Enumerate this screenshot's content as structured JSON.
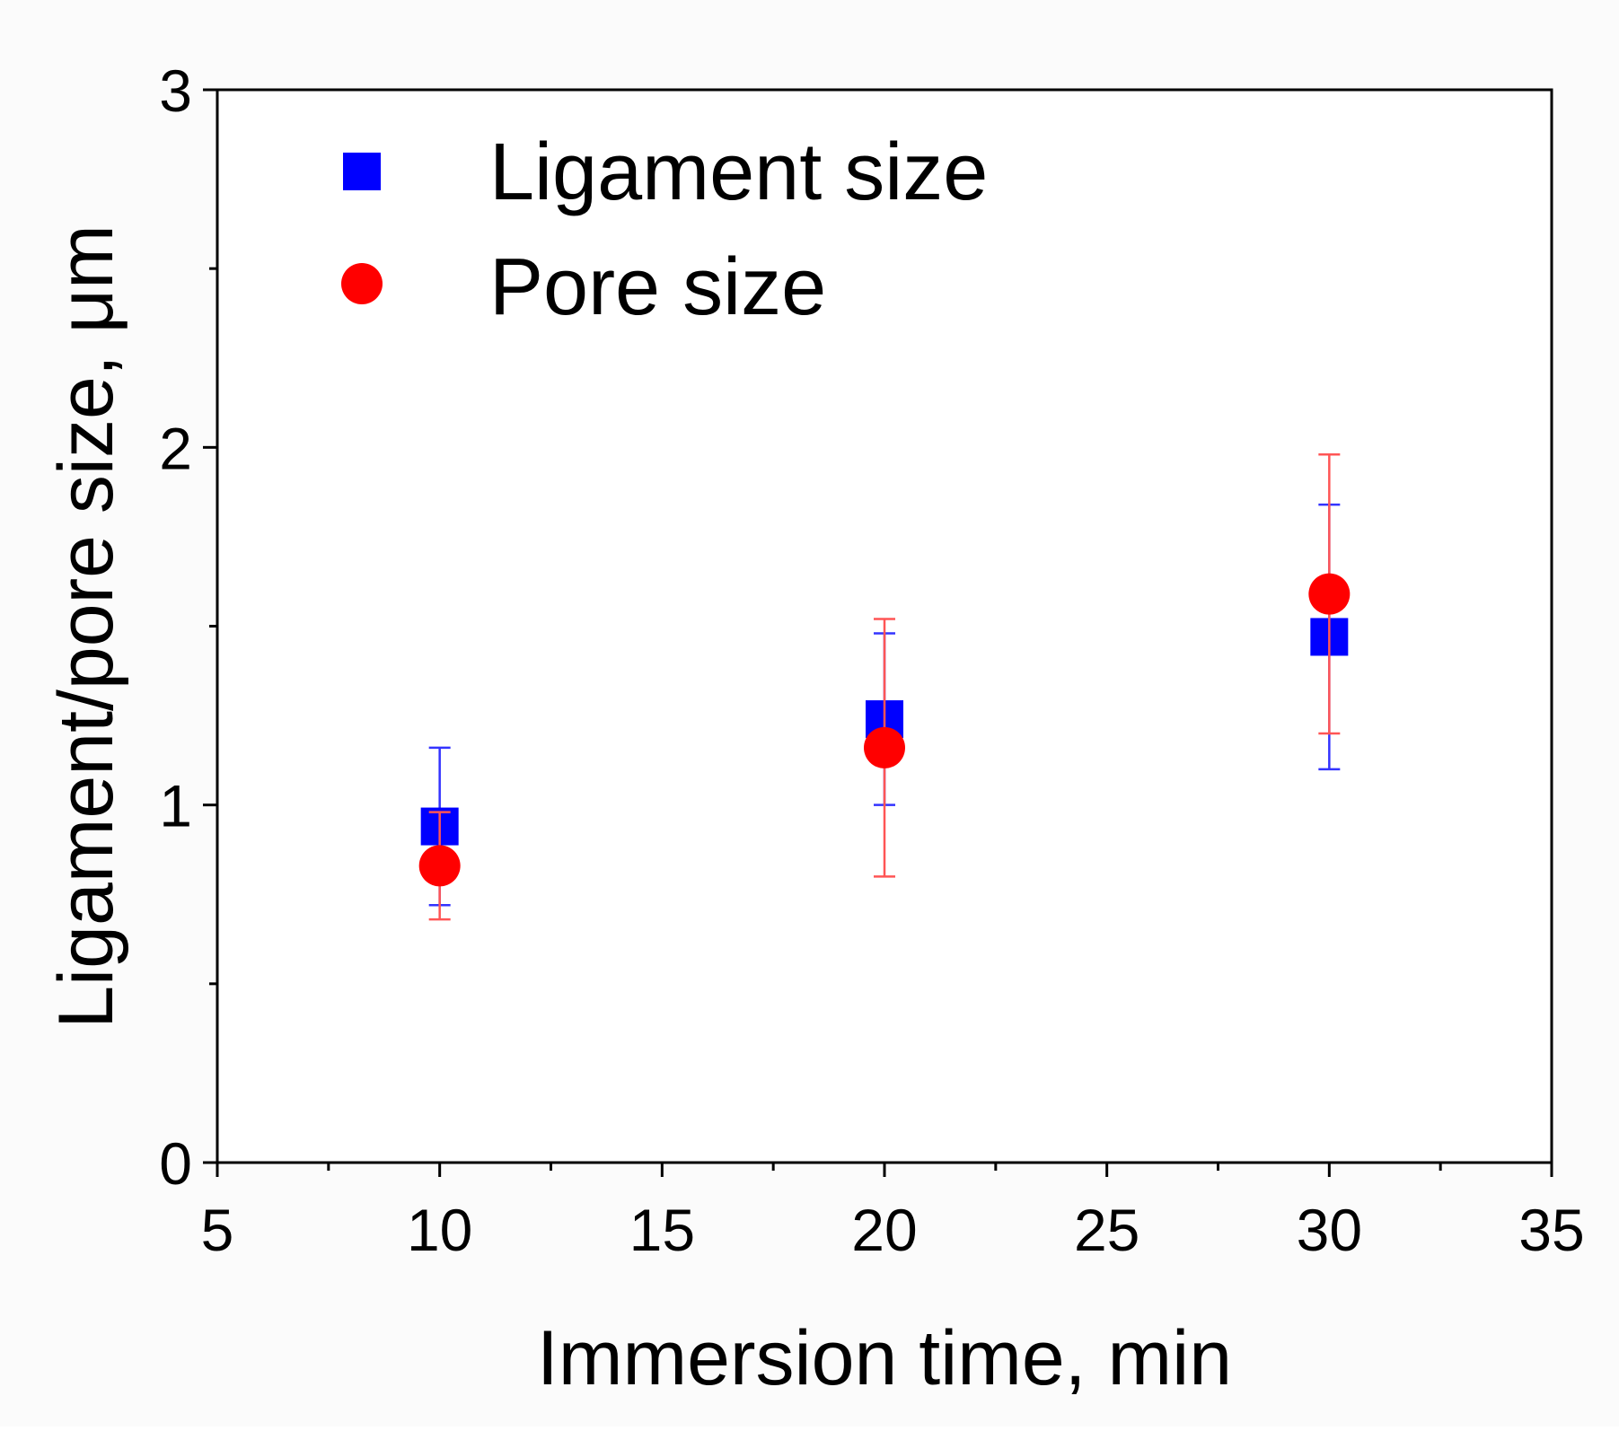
{
  "chart_data": {
    "type": "scatter",
    "title": "",
    "xlabel": "Immersion time, min",
    "ylabel": "Ligament/pore size, μm",
    "xlim": [
      5,
      35
    ],
    "ylim": [
      0,
      3
    ],
    "x_major_ticks": [
      5,
      10,
      15,
      20,
      25,
      30,
      35
    ],
    "x_tick_labels": [
      "5",
      "10",
      "15",
      "20",
      "25",
      "30",
      "35"
    ],
    "x_minor_ticks": [
      7.5,
      12.5,
      17.5,
      22.5,
      27.5,
      32.5
    ],
    "y_major_ticks": [
      0,
      1,
      2,
      3
    ],
    "y_tick_labels": [
      "0",
      "1",
      "2",
      "3"
    ],
    "y_minor_ticks": [
      0.5,
      1.5,
      2.5
    ],
    "grid": false,
    "legend_position": "top-left",
    "series": [
      {
        "name": "Ligament size",
        "marker": "square",
        "color": "#0000ff",
        "errorbar_color": "#3333ff",
        "x": [
          10,
          20,
          30
        ],
        "y": [
          0.94,
          1.24,
          1.47
        ],
        "yerr_low": [
          0.72,
          1.0,
          1.1
        ],
        "yerr_high": [
          1.16,
          1.48,
          1.84
        ]
      },
      {
        "name": "Pore size",
        "marker": "circle",
        "color": "#ff0000",
        "errorbar_color": "#ff5555",
        "x": [
          10,
          20,
          30
        ],
        "y": [
          0.83,
          1.16,
          1.59
        ],
        "yerr_low": [
          0.68,
          0.8,
          1.2
        ],
        "yerr_high": [
          0.98,
          1.52,
          1.98
        ]
      }
    ]
  }
}
